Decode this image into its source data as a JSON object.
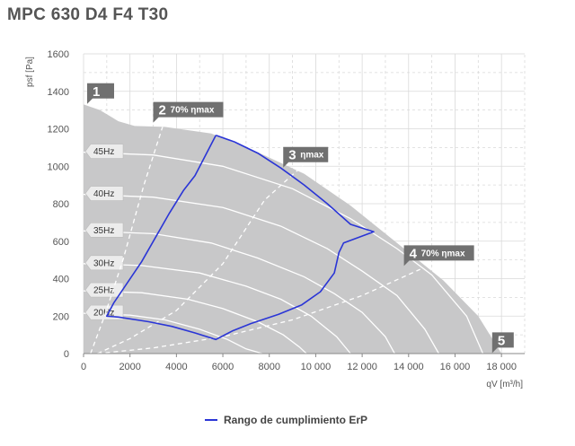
{
  "title": "MPC 630 D4 F4 T30",
  "chart_data": {
    "type": "line",
    "xlabel": "qV [m³/h]",
    "ylabel": "psf [Pa]",
    "xlim": [
      0,
      19000
    ],
    "ylim": [
      0,
      1600
    ],
    "x_ticks": [
      "0",
      "2000",
      "4000",
      "6000",
      "8000",
      "10 000",
      "12 000",
      "14 000",
      "16 000",
      "18 000"
    ],
    "y_ticks": [
      "0",
      "200",
      "400",
      "600",
      "800",
      "1000",
      "1200",
      "1400",
      "1600"
    ],
    "grid": true,
    "legend_position": "bottom-center",
    "envelope": [
      [
        0,
        1330
      ],
      [
        700,
        1300
      ],
      [
        1500,
        1240
      ],
      [
        2200,
        1215
      ],
      [
        3500,
        1210
      ],
      [
        5500,
        1175
      ],
      [
        7500,
        1075
      ],
      [
        9500,
        960
      ],
      [
        11500,
        790
      ],
      [
        13500,
        590
      ],
      [
        15500,
        390
      ],
      [
        17000,
        200
      ],
      [
        18000,
        0
      ],
      [
        0,
        0
      ]
    ],
    "speed_curves": [
      {
        "name": "45Hz",
        "x": [
          0,
          3000,
          6000,
          9000,
          11500,
          13500,
          15000,
          16500,
          17200
        ],
        "y": [
          1075,
          1060,
          1000,
          880,
          720,
          560,
          420,
          200,
          0
        ]
      },
      {
        "name": "40Hz",
        "x": [
          0,
          3000,
          6000,
          8500,
          10500,
          12000,
          13500,
          14700,
          15300
        ],
        "y": [
          850,
          835,
          780,
          680,
          560,
          440,
          310,
          130,
          0
        ]
      },
      {
        "name": "35Hz",
        "x": [
          0,
          3000,
          5500,
          7500,
          9500,
          10800,
          12000,
          13000,
          13400
        ],
        "y": [
          655,
          640,
          590,
          510,
          410,
          320,
          220,
          90,
          0
        ]
      },
      {
        "name": "30Hz",
        "x": [
          0,
          2500,
          5000,
          7000,
          8500,
          9800,
          10900,
          11500
        ],
        "y": [
          480,
          470,
          430,
          360,
          290,
          200,
          90,
          0
        ]
      },
      {
        "name": "25Hz",
        "x": [
          0,
          2500,
          4500,
          6000,
          7500,
          8600,
          9300,
          9600
        ],
        "y": [
          335,
          325,
          290,
          240,
          170,
          100,
          35,
          0
        ]
      },
      {
        "name": "20Hz",
        "x": [
          0,
          2000,
          3500,
          5000,
          6200,
          7000,
          7700
        ],
        "y": [
          215,
          205,
          180,
          130,
          75,
          25,
          0
        ]
      }
    ],
    "efficiency_lines": [
      {
        "marker": "1",
        "label": "",
        "x": [
          0,
          0
        ],
        "y": [
          0,
          0
        ]
      },
      {
        "marker": "2",
        "label": "70% ηmax",
        "x": [
          300,
          900,
          1700,
          2600,
          3400
        ],
        "y": [
          0,
          200,
          500,
          900,
          1210
        ]
      },
      {
        "marker": "3",
        "label": "ηmax",
        "x": [
          600,
          2000,
          4000,
          6000,
          7800,
          9500
        ],
        "y": [
          0,
          80,
          230,
          480,
          820,
          1010
        ]
      },
      {
        "marker": "4",
        "label": "70% ηmax",
        "x": [
          600,
          3000,
          6000,
          9000,
          12000,
          14500
        ],
        "y": [
          0,
          30,
          90,
          180,
          310,
          450
        ]
      },
      {
        "marker": "5",
        "label": "",
        "x": [
          0,
          0
        ],
        "y": [
          0,
          0
        ]
      }
    ],
    "series": [
      {
        "name": "Rango de cumplimiento ErP",
        "x": [
          5700,
          6500,
          7500,
          8500,
          9500,
          10500,
          11500,
          12500,
          11200,
          11000,
          10800,
          10200,
          9400,
          8400,
          7200,
          6400,
          5700,
          4800,
          3800,
          2800,
          1500,
          1000,
          1300,
          2500,
          3700,
          4300,
          4800,
          5700
        ],
        "y": [
          1165,
          1130,
          1070,
          990,
          900,
          800,
          690,
          650,
          590,
          540,
          430,
          330,
          260,
          210,
          160,
          120,
          75,
          110,
          145,
          170,
          195,
          200,
          270,
          490,
          750,
          870,
          950,
          1165
        ]
      }
    ]
  },
  "legend": {
    "label": "Rango de cumplimiento ErP",
    "color": "#2a35d6"
  },
  "colors": {
    "envelope": "#c8c8c9",
    "speed_curve": "#ffffff",
    "dashed": "#ffffff",
    "marker_bg": "#707070",
    "grid": "#d9d9d9"
  }
}
